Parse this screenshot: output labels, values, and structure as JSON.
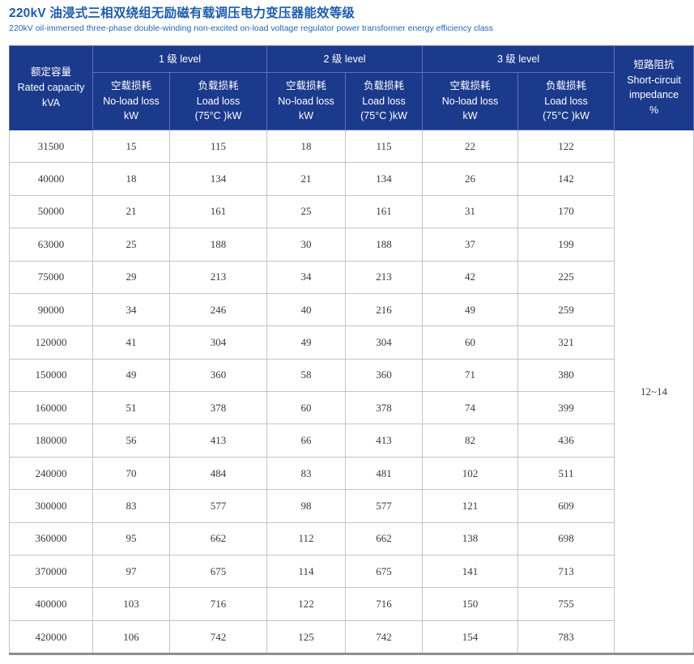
{
  "page": {
    "title_cn": "220kV 油浸式三相双绕组无励磁有载调压电力变压器能效等级",
    "title_en": "220kV oil-immersed three-phase double-winding non-excited on-load voltage regulator power transformer energy efficiency class"
  },
  "colors": {
    "header_bg": "#1b3a8c",
    "header_border": "#5f71b0",
    "header_text": "#ffffff",
    "title_blue": "#1d5cac",
    "subtitle_blue": "#2468b4",
    "body_border": "#c4c4c4",
    "bottom_border": "#8e8e8e",
    "cell_text": "#3a3a3a"
  },
  "table": {
    "corner_header": "额定容量\nRated capacity\nkVA",
    "level_groups": [
      "1 级 level",
      "2 级 level",
      "3 级 level"
    ],
    "no_load_header": "空载损耗\nNo-load loss\nkW",
    "load_header": "负载损耗\nLoad loss\n(75°C )kW",
    "impedance_header": "短路阻抗\nShort-circuit\nimpedance\n%",
    "impedance_value": "12~14",
    "column_headers_flat": [
      "Rated capacity kVA",
      "Level 1 No-load loss kW",
      "Level 1 Load loss (75°C) kW",
      "Level 2 No-load loss kW",
      "Level 2 Load loss (75°C) kW",
      "Level 3 No-load loss kW",
      "Level 3 Load loss (75°C) kW",
      "Short-circuit impedance %"
    ],
    "rows": [
      [
        31500,
        15,
        115,
        18,
        115,
        22,
        122
      ],
      [
        40000,
        18,
        134,
        21,
        134,
        26,
        142
      ],
      [
        50000,
        21,
        161,
        25,
        161,
        31,
        170
      ],
      [
        63000,
        25,
        188,
        30,
        188,
        37,
        199
      ],
      [
        75000,
        29,
        213,
        34,
        213,
        42,
        225
      ],
      [
        90000,
        34,
        246,
        40,
        216,
        49,
        259
      ],
      [
        120000,
        41,
        304,
        49,
        304,
        60,
        321
      ],
      [
        150000,
        49,
        360,
        58,
        360,
        71,
        380
      ],
      [
        160000,
        51,
        378,
        60,
        378,
        74,
        399
      ],
      [
        180000,
        56,
        413,
        66,
        413,
        82,
        436
      ],
      [
        240000,
        70,
        484,
        83,
        481,
        102,
        511
      ],
      [
        300000,
        83,
        577,
        98,
        577,
        121,
        609
      ],
      [
        360000,
        95,
        662,
        112,
        662,
        138,
        698
      ],
      [
        370000,
        97,
        675,
        114,
        675,
        141,
        713
      ],
      [
        400000,
        103,
        716,
        122,
        716,
        150,
        755
      ],
      [
        420000,
        106,
        742,
        125,
        742,
        154,
        783
      ]
    ]
  }
}
